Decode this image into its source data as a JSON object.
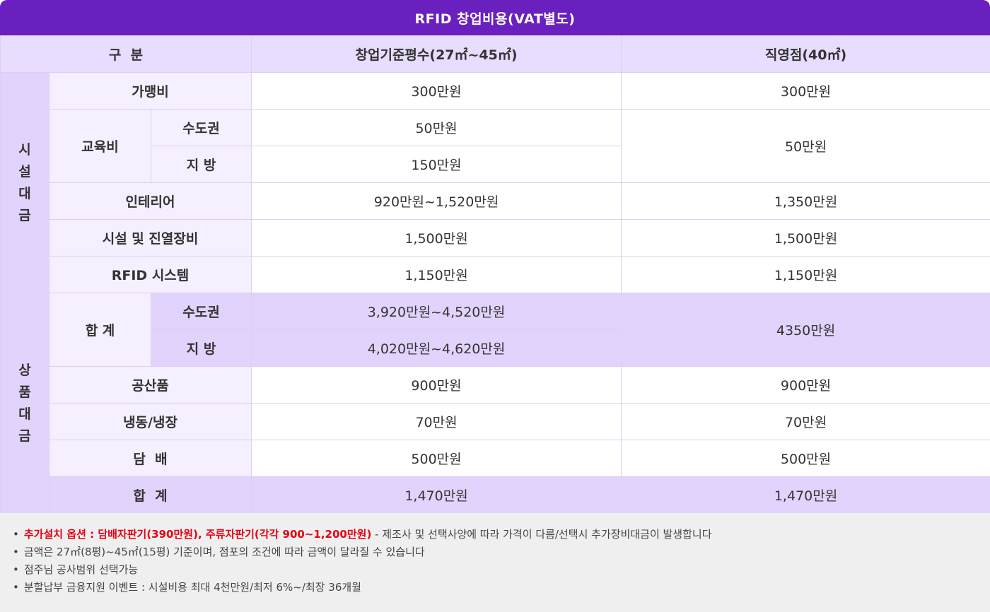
{
  "title": "RFID 창업비용(VAT별도)",
  "header": {
    "category": "구  분",
    "col1": "창업기준평수(27㎡~45㎡)",
    "col2": "직영점(40㎡)"
  },
  "sections": {
    "facility": "시설대금",
    "goods": "상품대금"
  },
  "rows": {
    "franchise": {
      "label": "가맹비",
      "v1": "300만원",
      "v2": "300만원"
    },
    "education": {
      "label": "교육비",
      "sub1": "수도권",
      "sub1_v1": "50만원",
      "sub2": "지 방",
      "sub2_v1": "150만원",
      "v2": "50만원"
    },
    "interior": {
      "label": "인테리어",
      "v1": "920만원~1,520만원",
      "v2": "1,350만원"
    },
    "equipment": {
      "label": "시설 및 진열장비",
      "v1": "1,500만원",
      "v2": "1,500만원"
    },
    "rfid": {
      "label": "RFID 시스템",
      "v1": "1,150만원",
      "v2": "1,150만원"
    },
    "facility_total": {
      "label": "합 계",
      "sub1": "수도권",
      "sub1_v1": "3,920만원~4,520만원",
      "sub2": "지 방",
      "sub2_v1": "4,020만원~4,620만원",
      "v2": "4350만원"
    },
    "industrial": {
      "label": "공산품",
      "v1": "900만원",
      "v2": "900만원"
    },
    "frozen": {
      "label": "냉동/냉장",
      "v1": "70만원",
      "v2": "70만원"
    },
    "tobacco": {
      "label": "담  배",
      "v1": "500만원",
      "v2": "500만원"
    },
    "goods_total": {
      "label": "합  계",
      "v1": "1,470만원",
      "v2": "1,470만원"
    }
  },
  "notes": {
    "n1_red": "추가설치 옵션 : 담배자판기(390만원), 주류자판기(각각 900~1,200만원)",
    "n1_rest": " - 제조사 및 선택사양에 따라 가격이 다름/선택시 추가장비대금이 발생합니다",
    "n2": "금액은 27㎡(8평)~45㎡(15평) 기준이며, 점포의 조건에 따라 금액이 달라질 수 있습니다",
    "n3": "점주님 공사범위 선택가능",
    "n4": "분할납부 금융지원 이벤트 : 시설비용 최대 4천만원/최저 6%~/최장 36개월"
  },
  "colors": {
    "title_bg": "#6a1fbf",
    "header_bg": "#e2d3fd",
    "label_bg": "#f5efff",
    "note_red": "#e60012",
    "notes_bg": "#efefef"
  }
}
